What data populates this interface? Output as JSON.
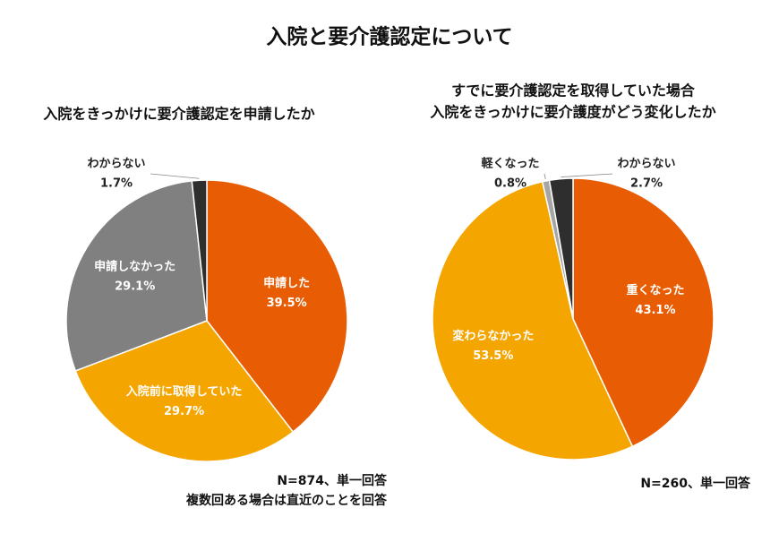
{
  "title": "入院と要介護認定について",
  "chart_data": [
    {
      "type": "pie",
      "title": [
        "入院をきっかけに要介護認定を申請したか"
      ],
      "categories": [
        "申請した",
        "入院前に取得していた",
        "申請しなかった",
        "わからない"
      ],
      "values": [
        39.5,
        29.7,
        29.1,
        1.7
      ],
      "value_labels": [
        "39.5%",
        "29.7%",
        "29.1%",
        "1.7%"
      ],
      "colors": [
        "#e85d04",
        "#f5a500",
        "#808080",
        "#2e2e2e"
      ],
      "notes": [
        "N=874、単一回答",
        "複数回ある場合は直近のことを回答"
      ]
    },
    {
      "type": "pie",
      "title": [
        "すでに要介護認定を取得していた場合",
        "入院をきっかけに要介護度がどう変化したか"
      ],
      "categories": [
        "重くなった",
        "変わらなかった",
        "軽くなった",
        "わからない"
      ],
      "values": [
        43.1,
        53.5,
        0.8,
        2.7
      ],
      "value_labels": [
        "43.1%",
        "53.5%",
        "0.8%",
        "2.7%"
      ],
      "colors": [
        "#e85d04",
        "#f5a500",
        "#a6a6a6",
        "#2e2e2e"
      ],
      "notes": [
        "N=260、単一回答"
      ]
    }
  ]
}
